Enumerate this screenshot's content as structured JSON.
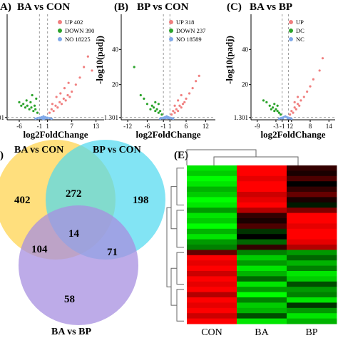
{
  "panels": {
    "a": {
      "letter": "A)",
      "title": "BA vs CON"
    },
    "b": {
      "letter": "(B)",
      "title": "BP vs CON"
    },
    "c": {
      "letter": "(C)",
      "title": "BA vs BP"
    },
    "d": {
      "letter": ")"
    },
    "e": {
      "letter": "(E)"
    }
  },
  "colors": {
    "up": "#f07f7f",
    "down": "#2aa32a",
    "no": "#7fa8e8",
    "heat_high": "#ff0000",
    "heat_low": "#00ff00"
  },
  "chart_data": [
    {
      "id": "volcano-a",
      "type": "scatter",
      "title": "BA vs CON",
      "xlabel": "log2FoldChange",
      "ylabel": "",
      "x_ticks": [
        "-6",
        "-1",
        "1",
        "7",
        "13"
      ],
      "y_ticks": [
        "1.301"
      ],
      "legend": [
        {
          "label": "UP",
          "count": "402"
        },
        {
          "label": "DOWN",
          "count": "390"
        },
        {
          "label": "NO",
          "count": "18225"
        }
      ],
      "legend_position": "top-right",
      "xlim": [
        -9,
        15
      ],
      "ylim": [
        0,
        60
      ],
      "series": [
        {
          "name": "UP",
          "points": [
            [
              1.5,
              4
            ],
            [
              2,
              6
            ],
            [
              2.5,
              5
            ],
            [
              3,
              8
            ],
            [
              3.5,
              7
            ],
            [
              4,
              10
            ],
            [
              4.5,
              9
            ],
            [
              5,
              12
            ],
            [
              5.5,
              11
            ],
            [
              6,
              14
            ],
            [
              6.5,
              13
            ],
            [
              7,
              16
            ],
            [
              8,
              20
            ],
            [
              9,
              24
            ],
            [
              10,
              30
            ],
            [
              11,
              36
            ],
            [
              12,
              28
            ],
            [
              2.2,
              9
            ],
            [
              3.2,
              13
            ],
            [
              4.2,
              15
            ],
            [
              5.2,
              18
            ],
            [
              6.2,
              21
            ]
          ]
        },
        {
          "name": "DOWN",
          "points": [
            [
              -1.5,
              4
            ],
            [
              -2,
              6
            ],
            [
              -2.5,
              5
            ],
            [
              -3,
              7
            ],
            [
              -3.5,
              6
            ],
            [
              -4,
              8
            ],
            [
              -4.5,
              7
            ],
            [
              -5,
              9
            ],
            [
              -5.5,
              8
            ],
            [
              -6,
              10
            ],
            [
              -2.2,
              8
            ],
            [
              -3.2,
              10
            ],
            [
              -4.2,
              11
            ],
            [
              -1.8,
              12
            ],
            [
              -2.8,
              14
            ]
          ]
        },
        {
          "name": "NO",
          "points": [
            [
              -0.8,
              0.8
            ],
            [
              -0.5,
              1.5
            ],
            [
              0,
              2
            ],
            [
              0.5,
              1.5
            ],
            [
              0.8,
              0.8
            ],
            [
              -0.3,
              1
            ],
            [
              0.3,
              1
            ],
            [
              1,
              1.2
            ],
            [
              -1,
              1.2
            ],
            [
              0.1,
              0.5
            ],
            [
              -0.1,
              0.5
            ],
            [
              1.5,
              0.9
            ],
            [
              -1.5,
              0.9
            ],
            [
              2,
              0.6
            ],
            [
              -2,
              0.6
            ]
          ]
        }
      ]
    },
    {
      "id": "volcano-b",
      "type": "scatter",
      "title": "BP vs CON",
      "xlabel": "log2FoldChange",
      "ylabel": "-log10(padj)",
      "x_ticks": [
        "-12",
        "-6",
        "-1",
        "1",
        "6",
        "12"
      ],
      "y_ticks": [
        "20",
        "40",
        "1.301"
      ],
      "legend": [
        {
          "label": "UP",
          "count": "318"
        },
        {
          "label": "DOWN",
          "count": "237"
        },
        {
          "label": "NO",
          "count": "18589"
        }
      ],
      "legend_position": "top-right",
      "xlim": [
        -14,
        15
      ],
      "ylim": [
        0,
        60
      ],
      "series": [
        {
          "name": "UP",
          "points": [
            [
              1.5,
              3
            ],
            [
              2,
              5
            ],
            [
              2.5,
              4
            ],
            [
              3,
              6
            ],
            [
              3.5,
              5
            ],
            [
              4,
              8
            ],
            [
              4.5,
              7
            ],
            [
              5,
              9
            ],
            [
              5.5,
              10
            ],
            [
              6,
              12
            ],
            [
              7,
              15
            ],
            [
              8,
              18
            ],
            [
              9,
              22
            ],
            [
              10,
              25
            ],
            [
              2.5,
              8
            ],
            [
              3.5,
              11
            ],
            [
              4.5,
              14
            ]
          ]
        },
        {
          "name": "DOWN",
          "points": [
            [
              -1.5,
              3
            ],
            [
              -2,
              5
            ],
            [
              -2.5,
              4
            ],
            [
              -3,
              6
            ],
            [
              -3.5,
              5
            ],
            [
              -4,
              7
            ],
            [
              -4.5,
              8
            ],
            [
              -5,
              6
            ],
            [
              -6,
              9
            ],
            [
              -7,
              12
            ],
            [
              -8,
              14
            ],
            [
              -10,
              30
            ],
            [
              -2.5,
              9
            ],
            [
              -3.5,
              10
            ]
          ]
        },
        {
          "name": "NO",
          "points": [
            [
              -0.8,
              0.8
            ],
            [
              -0.5,
              1.5
            ],
            [
              0,
              2
            ],
            [
              0.5,
              1.5
            ],
            [
              0.8,
              0.8
            ],
            [
              -0.3,
              1
            ],
            [
              0.3,
              1
            ],
            [
              1,
              1.2
            ],
            [
              -1,
              1.2
            ],
            [
              1.5,
              0.9
            ],
            [
              -1.5,
              0.9
            ],
            [
              2,
              0.6
            ],
            [
              -2,
              0.6
            ]
          ]
        }
      ]
    },
    {
      "id": "volcano-c",
      "type": "scatter",
      "title": "BA vs BP",
      "xlabel": "log2FoldChange",
      "ylabel": "-log10(padj)",
      "x_ticks": [
        "-9",
        "-3",
        "-1",
        "1",
        "2",
        "8",
        "14"
      ],
      "y_ticks": [
        "20",
        "40",
        "1.301"
      ],
      "legend": [
        {
          "label": "UP",
          "count": ""
        },
        {
          "label": "DC",
          "count": ""
        },
        {
          "label": "NC",
          "count": ""
        }
      ],
      "legend_position": "top-right",
      "xlim": [
        -11,
        16
      ],
      "ylim": [
        0,
        60
      ],
      "series": [
        {
          "name": "UP",
          "points": [
            [
              1.5,
              3
            ],
            [
              2,
              5
            ],
            [
              2.5,
              4
            ],
            [
              3,
              7
            ],
            [
              3.5,
              6
            ],
            [
              4,
              9
            ],
            [
              4.5,
              8
            ],
            [
              5,
              11
            ],
            [
              6,
              13
            ],
            [
              7,
              16
            ],
            [
              8,
              19
            ],
            [
              9,
              23
            ],
            [
              11,
              28
            ],
            [
              12,
              35
            ],
            [
              3,
              10
            ],
            [
              4,
              13
            ]
          ]
        },
        {
          "name": "DOWN",
          "points": [
            [
              -1.5,
              3
            ],
            [
              -2,
              4
            ],
            [
              -2.5,
              5
            ],
            [
              -3,
              6
            ],
            [
              -3.5,
              5
            ],
            [
              -4,
              7
            ],
            [
              -4.5,
              6
            ],
            [
              -5,
              8
            ],
            [
              -6,
              10
            ],
            [
              -7,
              11
            ],
            [
              -2.5,
              8
            ],
            [
              -3.5,
              9
            ]
          ]
        },
        {
          "name": "NO",
          "points": [
            [
              -0.8,
              0.8
            ],
            [
              -0.5,
              1.5
            ],
            [
              0,
              2
            ],
            [
              0.5,
              1.5
            ],
            [
              0.8,
              0.8
            ],
            [
              1,
              1.2
            ],
            [
              -1,
              1.2
            ],
            [
              1.5,
              0.9
            ],
            [
              -1.5,
              0.9
            ],
            [
              2,
              0.6
            ],
            [
              -2,
              0.6
            ]
          ]
        }
      ]
    },
    {
      "id": "venn-d",
      "type": "venn",
      "sets": [
        "BA vs CON",
        "BP vs CON",
        "BA vs BP"
      ],
      "regions": {
        "ba_con_only": "402",
        "bp_con_only": "198",
        "ba_bp_only": "58",
        "ba_con_and_bp_con": "272",
        "ba_con_and_ba_bp": "104",
        "bp_con_and_ba_bp": "71",
        "all_three": "14"
      },
      "set_colors": [
        "#ffd966",
        "#4dd9f0",
        "#a78fe0"
      ]
    },
    {
      "id": "heatmap-e",
      "type": "heatmap",
      "columns": [
        "CON",
        "BA",
        "BP"
      ],
      "rows": [
        [
          -0.9,
          1.0,
          0.2
        ],
        [
          -0.8,
          1.0,
          0.1
        ],
        [
          -1.0,
          0.9,
          0.3
        ],
        [
          -0.9,
          1.0,
          0.0
        ],
        [
          -0.7,
          1.0,
          0.2
        ],
        [
          -0.8,
          0.8,
          0.4
        ],
        [
          -1.0,
          0.9,
          0.1
        ],
        [
          -0.9,
          1.0,
          -0.1
        ],
        [
          -0.6,
          0.7,
          0.5
        ],
        [
          -0.9,
          0.2,
          1.0
        ],
        [
          -0.8,
          0.1,
          1.0
        ],
        [
          -1.0,
          0.3,
          0.9
        ],
        [
          -0.7,
          -0.2,
          1.0
        ],
        [
          -0.9,
          0.0,
          1.0
        ],
        [
          -0.6,
          -0.4,
          0.9
        ],
        [
          -0.5,
          0.2,
          0.7
        ],
        [
          0.4,
          -0.5,
          -0.6
        ],
        [
          1.0,
          -0.8,
          -0.4
        ],
        [
          0.9,
          -0.6,
          -0.7
        ],
        [
          1.0,
          -0.9,
          -0.5
        ],
        [
          0.8,
          -0.7,
          -0.9
        ],
        [
          1.0,
          -0.4,
          -0.8
        ],
        [
          0.9,
          -0.9,
          -0.3
        ],
        [
          1.0,
          -0.6,
          -0.6
        ],
        [
          0.7,
          -1.0,
          -0.5
        ],
        [
          1.0,
          -0.5,
          -0.9
        ],
        [
          0.9,
          -0.8,
          -0.2
        ],
        [
          1.0,
          -0.7,
          -0.6
        ],
        [
          0.8,
          -0.3,
          -0.9
        ],
        [
          1.0,
          -0.9,
          -0.7
        ]
      ]
    }
  ]
}
